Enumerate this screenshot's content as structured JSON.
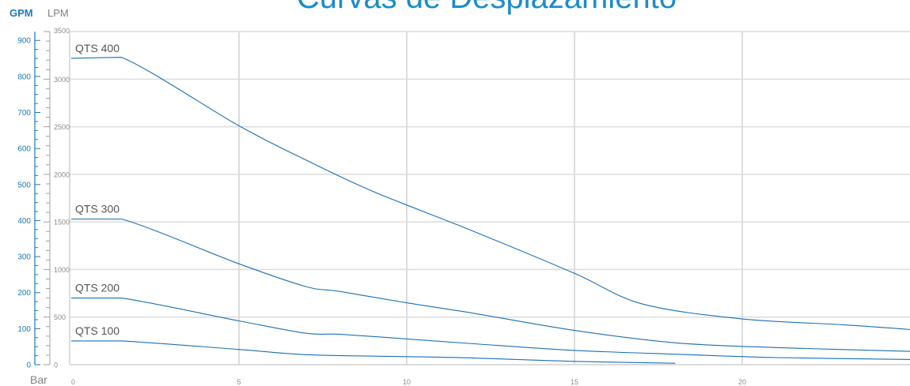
{
  "chart_data": {
    "type": "line",
    "title": "Curvas de Desplazamiento",
    "units": {
      "gpm": "GPM",
      "lpm": "LPM",
      "x": "Bar"
    },
    "xlim": [
      0,
      25
    ],
    "ylim_lpm": [
      0,
      3500
    ],
    "ylim_gpm": [
      0,
      924.6
    ],
    "x_ticks": [
      0,
      5,
      10,
      15,
      20
    ],
    "lpm_ticks": [
      0,
      500,
      1000,
      1500,
      2000,
      2500,
      3000,
      3500
    ],
    "gpm_ticks": [
      0,
      100,
      200,
      300,
      400,
      500,
      600,
      700,
      800,
      900
    ],
    "grid": true,
    "colors": {
      "line": "#1a6fb5",
      "grid": "#dcdcdc",
      "gpm_axis": "#1a7ab8",
      "lpm_axis": "#a0a0a0",
      "title": "#1a8ccc"
    },
    "series": [
      {
        "name": "QTS 400",
        "x": [
          0,
          1.5,
          5,
          7,
          9,
          12,
          15,
          17,
          20,
          23,
          25
        ],
        "y": [
          3220,
          3230,
          2510,
          2150,
          1820,
          1400,
          960,
          640,
          480,
          420,
          370
        ]
      },
      {
        "name": "QTS 300",
        "x": [
          0,
          1.5,
          5,
          7,
          8,
          10,
          12,
          15,
          18,
          21,
          25
        ],
        "y": [
          1530,
          1530,
          1060,
          820,
          770,
          650,
          540,
          360,
          230,
          180,
          140
        ]
      },
      {
        "name": "QTS 200",
        "x": [
          0,
          1.5,
          5,
          7,
          8,
          10,
          12,
          15,
          18,
          21,
          25
        ],
        "y": [
          700,
          700,
          460,
          330,
          320,
          270,
          220,
          150,
          110,
          75,
          55
        ]
      },
      {
        "name": "QTS 100",
        "x": [
          0,
          1.5,
          5,
          7,
          10,
          12,
          15,
          18
        ],
        "y": [
          250,
          250,
          160,
          105,
          85,
          70,
          35,
          15
        ]
      }
    ]
  }
}
